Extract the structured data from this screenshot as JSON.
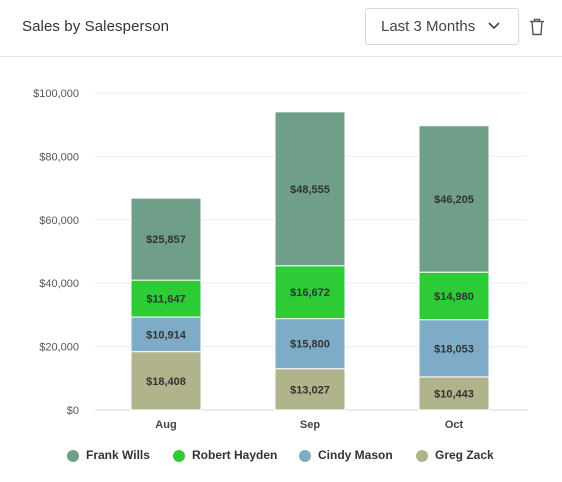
{
  "header": {
    "title": "Sales by Salesperson",
    "range_value": "Last 3 Months"
  },
  "icons": {
    "range_chevron": "chevron-down-icon",
    "delete": "trash-icon"
  },
  "chart_data": {
    "type": "bar",
    "stacked": true,
    "categories": [
      "Aug",
      "Sep",
      "Oct"
    ],
    "y_ticks": [
      "$0",
      "$20,000",
      "$40,000",
      "$60,000",
      "$80,000",
      "$100,000"
    ],
    "ylim": [
      0,
      100000
    ],
    "grid": true,
    "legend_position": "bottom",
    "series": [
      {
        "name": "Greg Zack",
        "color": "#b1b38b",
        "values": [
          18408,
          13027,
          10443
        ],
        "labels": [
          "$18,408",
          "$13,027",
          "$10,443"
        ]
      },
      {
        "name": "Cindy Mason",
        "color": "#7eacc7",
        "values": [
          10914,
          15800,
          18053
        ],
        "labels": [
          "$10,914",
          "$15,800",
          "$18,053"
        ]
      },
      {
        "name": "Robert Hayden",
        "color": "#2dcb36",
        "values": [
          11647,
          16672,
          14980
        ],
        "labels": [
          "$11,647",
          "$16,672",
          "$14,980"
        ]
      },
      {
        "name": "Frank Wills",
        "color": "#6f9f88",
        "values": [
          25857,
          48555,
          46205
        ],
        "labels": [
          "$25,857",
          "$48,555",
          "$46,205"
        ]
      }
    ]
  },
  "legend": [
    {
      "name": "Frank Wills",
      "color": "#6f9f88"
    },
    {
      "name": "Robert Hayden",
      "color": "#2dcb36"
    },
    {
      "name": "Cindy Mason",
      "color": "#7eacc7"
    },
    {
      "name": "Greg Zack",
      "color": "#b1b38b"
    }
  ]
}
